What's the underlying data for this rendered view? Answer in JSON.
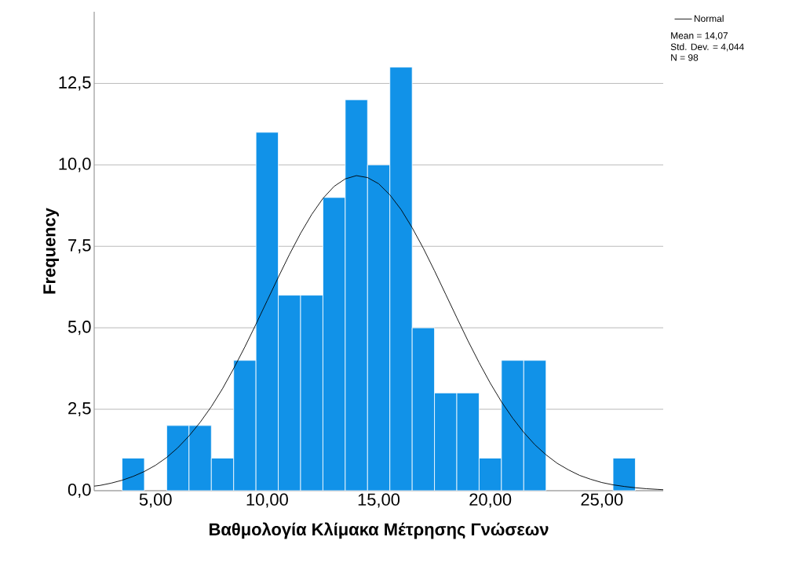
{
  "chart_data": {
    "type": "histogram",
    "xlabel": "Βαθμολογία Κλίμακα Μέτρησης Γνώσεων",
    "ylabel": "Frequency",
    "series": [
      {
        "color": "#1192e8",
        "bins": [
          3.5,
          4.5,
          5.5,
          6.5,
          7.5,
          8.5,
          9.5,
          10.5,
          11.5,
          12.5,
          13.5,
          14.5,
          15.5,
          16.5,
          17.5,
          18.5,
          19.5,
          20.5,
          21.5,
          22.5,
          23.5,
          24.5,
          25.5,
          26.5
        ],
        "values": [
          1,
          0,
          2,
          2,
          1,
          4,
          11,
          6,
          6,
          9,
          12,
          10,
          13,
          5,
          3,
          3,
          1,
          4,
          4,
          0,
          0,
          0,
          1
        ]
      },
      {
        "type": "line",
        "name": "Normal",
        "color": "#000000",
        "x": [
          2.25,
          2.5,
          3,
          3.5,
          4,
          4.5,
          5,
          5.5,
          6,
          6.5,
          7,
          7.5,
          8,
          8.5,
          9,
          9.5,
          10,
          10.5,
          11,
          11.5,
          12,
          12.5,
          13,
          13.5,
          14,
          14.5,
          15,
          15.5,
          16,
          16.5,
          17,
          17.5,
          18,
          18.5,
          19,
          19.5,
          20,
          20.5,
          21,
          21.5,
          22,
          22.5,
          23,
          23.5,
          24,
          24.5,
          25,
          25.5,
          26,
          26.5,
          27,
          27.5,
          27.75
        ],
        "values": [
          0.14,
          0.16,
          0.23,
          0.32,
          0.44,
          0.59,
          0.78,
          1.02,
          1.32,
          1.68,
          2.1,
          2.58,
          3.13,
          3.75,
          4.41,
          5.11,
          5.83,
          6.55,
          7.25,
          7.9,
          8.48,
          8.97,
          9.34,
          9.57,
          9.67,
          9.61,
          9.42,
          9.08,
          8.63,
          8.07,
          7.44,
          6.75,
          6.03,
          5.31,
          4.6,
          3.93,
          3.3,
          2.73,
          2.23,
          1.79,
          1.41,
          1.1,
          0.84,
          0.64,
          0.47,
          0.35,
          0.25,
          0.18,
          0.13,
          0.09,
          0.06,
          0.04,
          0.03
        ]
      }
    ],
    "xlim": [
      2.25,
      27.75
    ],
    "ylim": [
      0,
      14.7
    ],
    "xticks": [
      {
        "value": 5,
        "label": "5,00"
      },
      {
        "value": 10,
        "label": "10,00"
      },
      {
        "value": 15,
        "label": "15,00"
      },
      {
        "value": 20,
        "label": "20,00"
      },
      {
        "value": 25,
        "label": "25,00"
      }
    ],
    "yticks": [
      {
        "value": 0,
        "label": "0,0"
      },
      {
        "value": 2.5,
        "label": "2,5"
      },
      {
        "value": 5,
        "label": "5,0"
      },
      {
        "value": 7.5,
        "label": "7,5"
      },
      {
        "value": 10,
        "label": "10,0"
      },
      {
        "value": 12.5,
        "label": "12,5"
      }
    ],
    "grid": "y",
    "legend": "top right",
    "annotations": [
      "Mean = 14,07",
      "Std. Dev. = 4,044",
      "N = 98"
    ]
  }
}
